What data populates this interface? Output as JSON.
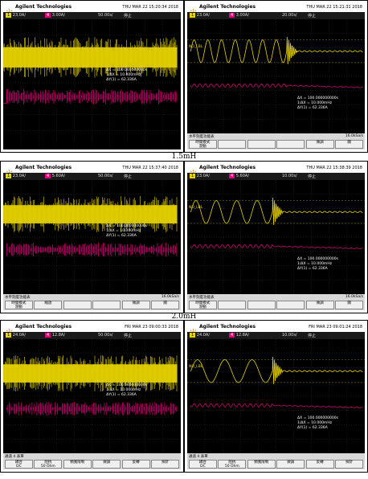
{
  "rows": [
    {
      "caption": "1.5mH",
      "panels": [
        {
          "brand": "Agilent Technologies",
          "datetime": "THU MAR 22 15:20:34 2018",
          "ch1_scale": "23.0A/",
          "ch2_scale": "3.00A/",
          "timebase": "50.00s/",
          "run_state": "停止",
          "trig_label": "NO_LBL",
          "meas": [
            "ΔX = 100.000000000s",
            "1/ΔX = 10.000mHz",
            "ΔY(1) = 62.336A"
          ],
          "softkeys": []
        },
        {
          "brand": "Agilent Technologies",
          "datetime": "THU MAR 22 15:21:31 2018",
          "ch1_scale": "23.0A/",
          "ch2_scale": "3.00A/",
          "timebase": "20.00s/",
          "run_state": "停止",
          "trig_label": "NO_LBL",
          "meas": [
            "ΔX = 100.000000000s",
            "1/ΔX = 10.000mHz",
            "ΔY(1) = 62.336A"
          ],
          "soft_title": "水平刻度功能表",
          "sample_rate": "16.0kSa/s",
          "softkeys": [
            "時間模式\n游動",
            "",
            "",
            "",
            "微調",
            "關"
          ]
        }
      ]
    },
    {
      "caption": "2.0mH",
      "panels": [
        {
          "brand": "Agilent Technologies",
          "datetime": "THU MAR 22 15:37:40 2018",
          "ch1_scale": "23.0A/",
          "ch2_scale": "5.60A/",
          "timebase": "50.00s/",
          "run_state": "停止",
          "trig_label": "NO_LBL",
          "meas": [
            "ΔX = 100.000000000s",
            "1/ΔX = 10.000mHz",
            "ΔY(1) = 62.336A"
          ],
          "soft_title": "水平刻度功能表",
          "sample_rate": "16.0kSa/s",
          "softkeys": [
            "時間模式\n游動",
            "縮放",
            "",
            "",
            "微調",
            "關"
          ]
        },
        {
          "brand": "Agilent Technologies",
          "datetime": "THU MAR 22 15:38:39 2018",
          "ch1_scale": "23.0A/",
          "ch2_scale": "5.60A/",
          "timebase": "10.00s/",
          "run_state": "停止",
          "trig_label": "NO_LBL",
          "meas": [
            "ΔX = 100.000000000s",
            "1/ΔX = 10.000mHz",
            "ΔY(1) = 62.336A"
          ],
          "soft_title": "水平刻度功能表",
          "sample_rate": "16.0kSa/s",
          "softkeys": [
            "時間模式\n游動",
            "",
            "",
            "",
            "微調",
            "關"
          ]
        }
      ]
    },
    {
      "caption": "",
      "panels": [
        {
          "brand": "Agilent Technologies",
          "datetime": "FRI MAR 23 09:00:33 2018",
          "ch1_scale": "24.0A/",
          "ch2_scale": "12.8A/",
          "timebase": "50.00s/",
          "run_state": "停止",
          "trig_label": "NO_LBL",
          "meas": [
            "ΔX = 100.000000000s",
            "1/ΔX = 10.000mHz",
            "ΔY(1) = 62.336A"
          ],
          "soft_title": "通道 4 表單",
          "sample_rate": "",
          "softkeys": [
            "耦合\nDC",
            "阻抗\n50 Ohm",
            "頻寬限制",
            "微調",
            "反轉",
            "探針"
          ]
        },
        {
          "brand": "Agilent Technologies",
          "datetime": "FRI MAR 23 09:01:24 2018",
          "ch1_scale": "24.0A/",
          "ch2_scale": "12.8A/",
          "timebase": "10.00s/",
          "run_state": "停止",
          "trig_label": "NO_LBL",
          "meas": [
            "ΔX = 100.000000000s",
            "1/ΔX = 10.000mHz",
            "ΔY(1) = 62.336A"
          ],
          "soft_title": "通道 4 表單",
          "sample_rate": "",
          "softkeys": [
            "耦合\nDC",
            "阻抗\n50 Ohm",
            "頻寬限制",
            "微調",
            "反轉",
            "探針"
          ]
        }
      ]
    }
  ],
  "colors": {
    "ch1": "#e8d400",
    "ch2": "#e4007c",
    "screen": "#000000"
  }
}
